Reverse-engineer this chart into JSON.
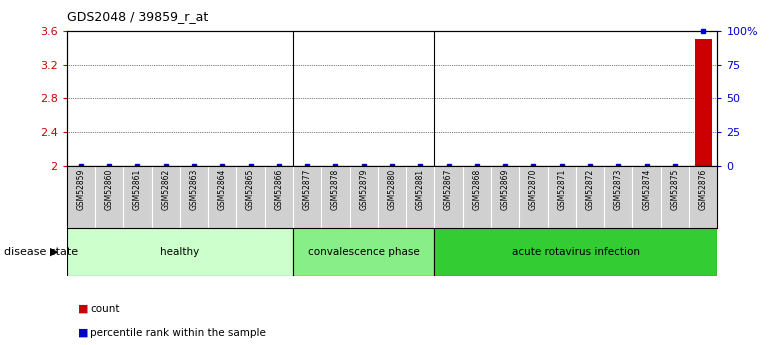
{
  "title": "GDS2048 / 39859_r_at",
  "samples": [
    "GSM52859",
    "GSM52860",
    "GSM52861",
    "GSM52862",
    "GSM52863",
    "GSM52864",
    "GSM52865",
    "GSM52866",
    "GSM52877",
    "GSM52878",
    "GSM52879",
    "GSM52880",
    "GSM52881",
    "GSM52867",
    "GSM52868",
    "GSM52869",
    "GSM52870",
    "GSM52871",
    "GSM52872",
    "GSM52873",
    "GSM52874",
    "GSM52875",
    "GSM52876"
  ],
  "count_values": [
    2.0,
    2.0,
    2.0,
    2.0,
    2.0,
    2.0,
    2.0,
    2.0,
    2.0,
    2.0,
    2.0,
    2.0,
    2.0,
    2.0,
    2.0,
    2.0,
    2.0,
    2.0,
    2.0,
    2.0,
    2.0,
    2.0,
    3.5
  ],
  "percentile_values": [
    0,
    0,
    0,
    0,
    0,
    0,
    0,
    0,
    0,
    0,
    0,
    0,
    0,
    0,
    0,
    0,
    0,
    0,
    0,
    0,
    0,
    0,
    100
  ],
  "ylim_left": [
    2.0,
    3.6
  ],
  "ylim_right": [
    0,
    100
  ],
  "yticks_left": [
    2.0,
    2.4,
    2.8,
    3.2,
    3.6
  ],
  "yticks_right": [
    0,
    25,
    50,
    75,
    100
  ],
  "ytick_labels_left": [
    "2",
    "2.4",
    "2.8",
    "3.2",
    "3.6"
  ],
  "ytick_labels_right": [
    "0",
    "25",
    "50",
    "75",
    "100%"
  ],
  "groups": [
    {
      "label": "healthy",
      "start": 0,
      "end": 8,
      "color": "#ccffcc"
    },
    {
      "label": "convalescence phase",
      "start": 8,
      "end": 13,
      "color": "#88ee88"
    },
    {
      "label": "acute rotavirus infection",
      "start": 13,
      "end": 23,
      "color": "#33cc33"
    }
  ],
  "disease_state_label": "disease state",
  "legend_count_color": "#cc0000",
  "legend_percentile_color": "#0000cc",
  "bar_color": "#cc0000",
  "dot_color": "#0000cc",
  "background_color": "#ffffff",
  "tick_label_color_left": "#cc0000",
  "tick_label_color_right": "#0000cc",
  "xtick_bg_color": "#d0d0d0",
  "group_border_color": "#000000"
}
